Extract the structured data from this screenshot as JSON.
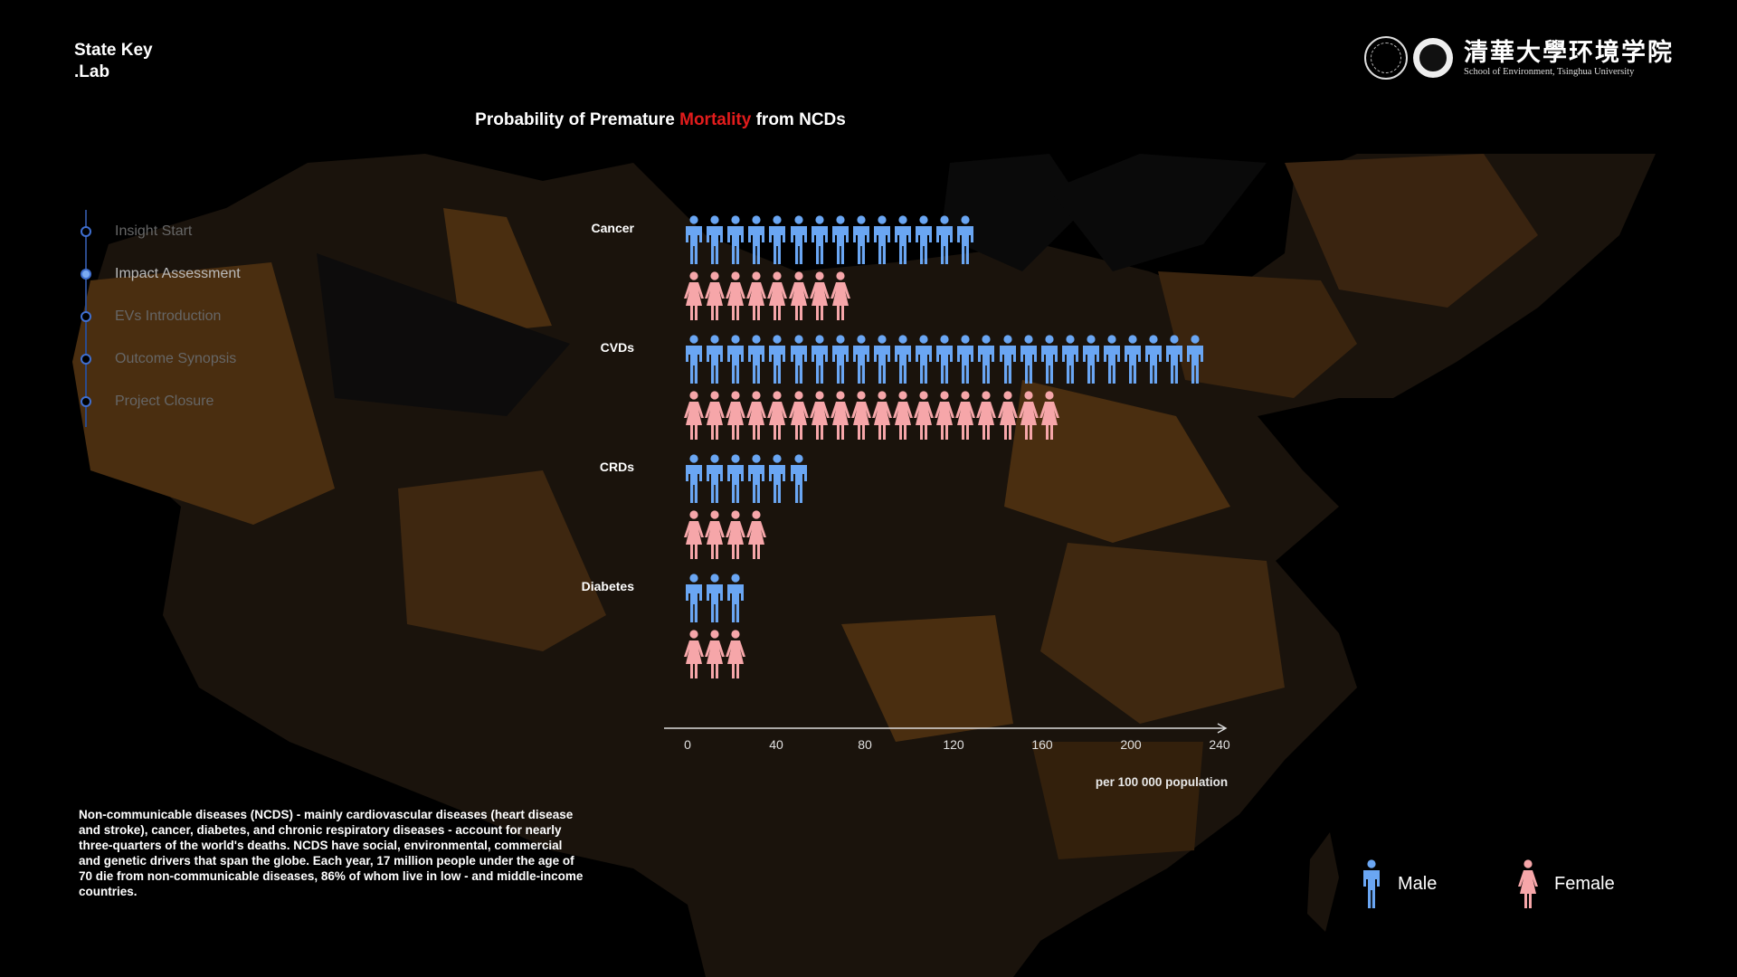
{
  "brand": {
    "line1": "State Key",
    "line2": ".Lab"
  },
  "logo": {
    "cn": "清華大學环境学院",
    "en": "School of Environment, Tsinghua University"
  },
  "title": {
    "before": "Probability of Premature ",
    "highlight": "Mortality",
    "after": " from NCDs"
  },
  "nav": {
    "items": [
      {
        "label": "Insight Start",
        "active": false
      },
      {
        "label": "Impact Assessment",
        "active": true
      },
      {
        "label": "EVs Introduction",
        "active": false
      },
      {
        "label": "Outcome Synopsis",
        "active": false
      },
      {
        "label": "Project Closure",
        "active": false
      }
    ]
  },
  "chart_data": {
    "type": "bar",
    "categories": [
      "Cancer",
      "CVDs",
      "CRDs",
      "Diabetes"
    ],
    "series": [
      {
        "name": "Male",
        "values": [
          140,
          250,
          60,
          30
        ]
      },
      {
        "name": "Female",
        "values": [
          80,
          180,
          40,
          30
        ]
      }
    ],
    "x_ticks": [
      "0",
      "40",
      "80",
      "120",
      "160",
      "200",
      "240"
    ],
    "xlabel": "per 100 000 population",
    "xlim": [
      0,
      250
    ],
    "colors": {
      "male": "#6aa6f3",
      "female": "#f6a6a9"
    },
    "icon_unit": 10
  },
  "description": "Non-communicable diseases (NCDS) - mainly cardiovascular diseases (heart disease and stroke), cancer, diabetes, and chronic respiratory diseases - account for nearly three-quarters of the world's deaths. NCDS have social, environmental, commercial and genetic drivers that span the globe. Each year, 17 million people under the age of 70 die from non-communicable diseases, 86% of whom live in low - and middle-income countries.",
  "legend": {
    "male": "Male",
    "female": "Female"
  }
}
